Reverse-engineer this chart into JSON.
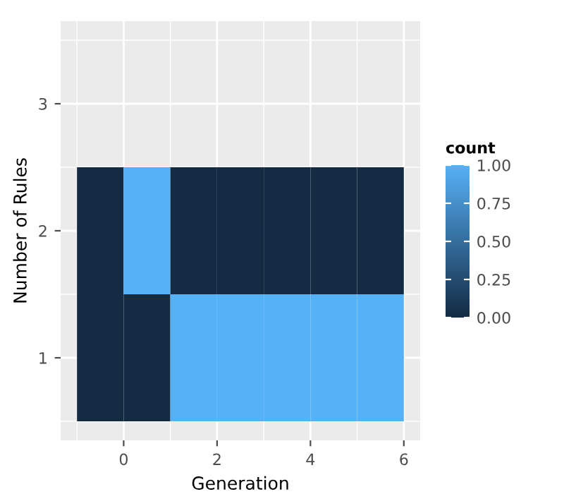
{
  "chart_data": {
    "type": "heatmap",
    "xlabel": "Generation",
    "ylabel": "Number of Rules",
    "legend_title": "count",
    "x": [
      -0.5,
      0.5,
      1.5,
      2.5,
      3.5,
      4.5,
      5.5
    ],
    "y": [
      2,
      1
    ],
    "cells": [
      [
        0,
        1,
        0,
        0,
        0,
        0,
        0
      ],
      [
        0,
        0,
        1,
        1,
        1,
        1,
        1
      ]
    ],
    "colors": [
      "#132b43",
      "#56b1f7"
    ],
    "clim": [
      0,
      1
    ],
    "cticks": [
      {
        "value": 0,
        "label": "0.00"
      },
      {
        "value": 0.25,
        "label": "0.25"
      },
      {
        "value": 0.5,
        "label": "0.50"
      },
      {
        "value": 0.75,
        "label": "0.75"
      },
      {
        "value": 1,
        "label": "1.00"
      }
    ],
    "xlim": [
      -1.35,
      6.35
    ],
    "xticks": [
      0,
      2,
      4,
      6
    ],
    "ylim": [
      0.35,
      3.65
    ],
    "yticks": [
      1,
      2,
      3
    ],
    "grid": true
  }
}
